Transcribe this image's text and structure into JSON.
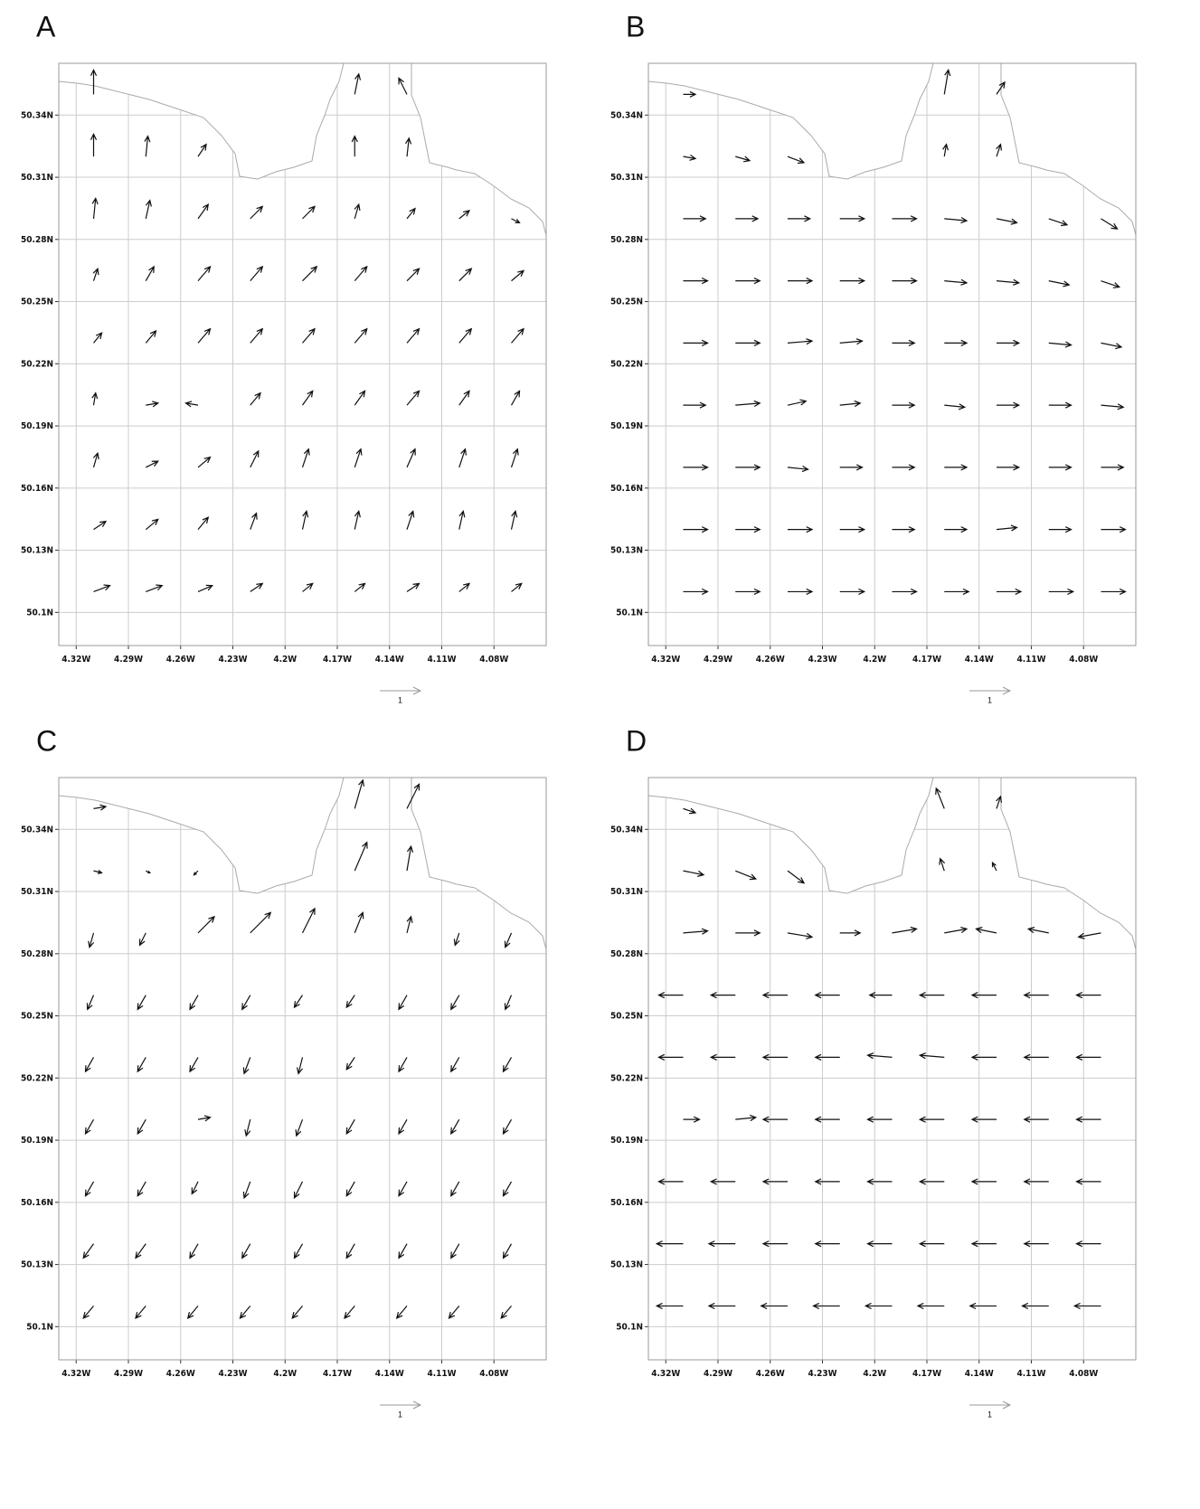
{
  "chart_data": [
    {
      "type": "quiver",
      "title": "A",
      "x": [
        -4.31,
        -4.28,
        -4.25,
        -4.22,
        -4.19,
        -4.16,
        -4.13,
        -4.1,
        -4.07
      ],
      "y": [
        50.35,
        50.32,
        50.29,
        50.26,
        50.23,
        50.2,
        50.17,
        50.14,
        50.11
      ],
      "u": [
        [
          0.0,
          null,
          null,
          null,
          null,
          0.1,
          -0.2,
          null,
          null
        ],
        [
          0.0,
          0.05,
          0.2,
          null,
          null,
          0.0,
          0.05,
          null,
          null
        ],
        [
          0.05,
          0.1,
          0.25,
          0.3,
          0.3,
          0.1,
          0.2,
          0.25,
          0.2
        ],
        [
          0.1,
          0.2,
          0.3,
          0.3,
          0.35,
          0.3,
          0.3,
          0.3,
          0.3
        ],
        [
          0.2,
          0.25,
          0.3,
          0.3,
          0.3,
          0.3,
          0.3,
          0.3,
          0.3
        ],
        [
          0.05,
          0.3,
          -0.3,
          0.25,
          0.25,
          0.25,
          0.3,
          0.25,
          0.2
        ],
        [
          0.1,
          0.3,
          0.3,
          0.2,
          0.15,
          0.15,
          0.2,
          0.15,
          0.15
        ],
        [
          0.3,
          0.3,
          0.25,
          0.15,
          0.1,
          0.1,
          0.15,
          0.1,
          0.1
        ],
        [
          0.4,
          0.4,
          0.35,
          0.3,
          0.25,
          0.25,
          0.3,
          0.25,
          0.25
        ]
      ],
      "v": [
        [
          0.6,
          null,
          null,
          null,
          null,
          0.5,
          0.4,
          null,
          null
        ],
        [
          0.55,
          0.5,
          0.3,
          null,
          null,
          0.5,
          0.45,
          null,
          null
        ],
        [
          0.5,
          0.45,
          0.35,
          0.3,
          0.3,
          0.35,
          0.25,
          0.2,
          -0.1
        ],
        [
          0.3,
          0.35,
          0.35,
          0.35,
          0.35,
          0.35,
          0.3,
          0.3,
          0.25
        ],
        [
          0.25,
          0.3,
          0.35,
          0.35,
          0.35,
          0.35,
          0.35,
          0.35,
          0.35
        ],
        [
          0.3,
          0.05,
          0.05,
          0.3,
          0.35,
          0.35,
          0.35,
          0.35,
          0.35
        ],
        [
          0.35,
          0.15,
          0.25,
          0.4,
          0.45,
          0.45,
          0.45,
          0.45,
          0.45
        ],
        [
          0.2,
          0.25,
          0.3,
          0.4,
          0.45,
          0.45,
          0.45,
          0.45,
          0.45
        ],
        [
          0.15,
          0.15,
          0.15,
          0.2,
          0.2,
          0.2,
          0.2,
          0.2,
          0.2
        ]
      ],
      "xlim": [
        -4.33,
        -4.05
      ],
      "ylim": [
        50.084,
        50.365
      ],
      "xticks": [
        {
          "value": -4.32,
          "label": "4.32W"
        },
        {
          "value": -4.29,
          "label": "4.29W"
        },
        {
          "value": -4.26,
          "label": "4.26W"
        },
        {
          "value": -4.23,
          "label": "4.23W"
        },
        {
          "value": -4.2,
          "label": "4.2W"
        },
        {
          "value": -4.17,
          "label": "4.17W"
        },
        {
          "value": -4.14,
          "label": "4.14W"
        },
        {
          "value": -4.11,
          "label": "4.11W"
        },
        {
          "value": -4.08,
          "label": "4.08W"
        }
      ],
      "yticks": [
        {
          "value": 50.1,
          "label": "50.1N"
        },
        {
          "value": 50.13,
          "label": "50.13N"
        },
        {
          "value": 50.16,
          "label": "50.16N"
        },
        {
          "value": 50.19,
          "label": "50.19N"
        },
        {
          "value": 50.22,
          "label": "50.22N"
        },
        {
          "value": 50.25,
          "label": "50.25N"
        },
        {
          "value": 50.28,
          "label": "50.28N"
        },
        {
          "value": 50.31,
          "label": "50.31N"
        },
        {
          "value": 50.34,
          "label": "50.34N"
        }
      ],
      "reference_length": 1,
      "grid": true
    },
    {
      "type": "quiver",
      "title": "B",
      "x": [
        -4.31,
        -4.28,
        -4.25,
        -4.22,
        -4.19,
        -4.16,
        -4.13,
        -4.1,
        -4.07
      ],
      "y": [
        50.35,
        50.32,
        50.29,
        50.26,
        50.23,
        50.2,
        50.17,
        50.14,
        50.11
      ],
      "u": [
        [
          0.3,
          null,
          null,
          null,
          null,
          0.1,
          0.2,
          null,
          null
        ],
        [
          0.3,
          0.35,
          0.4,
          null,
          null,
          0.05,
          0.1,
          null,
          null
        ],
        [
          0.55,
          0.55,
          0.55,
          0.6,
          0.6,
          0.55,
          0.5,
          0.45,
          0.4
        ],
        [
          0.6,
          0.6,
          0.6,
          0.6,
          0.6,
          0.55,
          0.55,
          0.5,
          0.45
        ],
        [
          0.6,
          0.6,
          0.6,
          0.55,
          0.55,
          0.55,
          0.55,
          0.55,
          0.5
        ],
        [
          0.55,
          0.6,
          0.45,
          0.5,
          0.55,
          0.5,
          0.55,
          0.55,
          0.55
        ],
        [
          0.6,
          0.6,
          0.5,
          0.55,
          0.55,
          0.55,
          0.55,
          0.55,
          0.55
        ],
        [
          0.6,
          0.6,
          0.6,
          0.6,
          0.55,
          0.55,
          0.5,
          0.55,
          0.6
        ],
        [
          0.6,
          0.6,
          0.6,
          0.6,
          0.6,
          0.6,
          0.6,
          0.6,
          0.6
        ]
      ],
      "v": [
        [
          0.0,
          null,
          null,
          null,
          null,
          0.6,
          0.3,
          null,
          null
        ],
        [
          -0.05,
          -0.1,
          -0.15,
          null,
          null,
          0.3,
          0.3,
          null,
          null
        ],
        [
          0,
          0,
          0,
          0,
          0,
          -0.05,
          -0.1,
          -0.15,
          -0.25
        ],
        [
          0,
          0,
          0,
          0,
          0,
          -0.05,
          -0.05,
          -0.1,
          -0.15
        ],
        [
          0,
          0,
          0.05,
          0.05,
          0,
          0,
          0,
          -0.05,
          -0.1
        ],
        [
          0,
          0.05,
          0.1,
          0.05,
          0,
          -0.05,
          0,
          0,
          -0.05
        ],
        [
          0,
          0,
          -0.05,
          0,
          0,
          0,
          0,
          0,
          0
        ],
        [
          0,
          0,
          0,
          0,
          0,
          0,
          0.05,
          0,
          0
        ],
        [
          0,
          0,
          0,
          0,
          0,
          0,
          0,
          0,
          0
        ]
      ],
      "xlim": [
        -4.33,
        -4.05
      ],
      "ylim": [
        50.084,
        50.365
      ],
      "xticks": [
        {
          "value": -4.32,
          "label": "4.32W"
        },
        {
          "value": -4.29,
          "label": "4.29W"
        },
        {
          "value": -4.26,
          "label": "4.26W"
        },
        {
          "value": -4.23,
          "label": "4.23W"
        },
        {
          "value": -4.2,
          "label": "4.2W"
        },
        {
          "value": -4.17,
          "label": "4.17W"
        },
        {
          "value": -4.14,
          "label": "4.14W"
        },
        {
          "value": -4.11,
          "label": "4.11W"
        },
        {
          "value": -4.08,
          "label": "4.08W"
        }
      ],
      "yticks": [
        {
          "value": 50.1,
          "label": "50.1N"
        },
        {
          "value": 50.13,
          "label": "50.13N"
        },
        {
          "value": 50.16,
          "label": "50.16N"
        },
        {
          "value": 50.19,
          "label": "50.19N"
        },
        {
          "value": 50.22,
          "label": "50.22N"
        },
        {
          "value": 50.25,
          "label": "50.25N"
        },
        {
          "value": 50.28,
          "label": "50.28N"
        },
        {
          "value": 50.31,
          "label": "50.31N"
        },
        {
          "value": 50.34,
          "label": "50.34N"
        }
      ],
      "reference_length": 1,
      "grid": true
    },
    {
      "type": "quiver",
      "title": "C",
      "x": [
        -4.31,
        -4.28,
        -4.25,
        -4.22,
        -4.19,
        -4.16,
        -4.13,
        -4.1,
        -4.07
      ],
      "y": [
        50.35,
        50.32,
        50.29,
        50.26,
        50.23,
        50.2,
        50.17,
        50.14,
        50.11
      ],
      "u": [
        [
          0.3,
          null,
          null,
          null,
          null,
          0.2,
          0.3,
          null,
          null
        ],
        [
          0.2,
          0.1,
          -0.1,
          null,
          null,
          0.3,
          0.1,
          null,
          null
        ],
        [
          -0.1,
          -0.15,
          0.4,
          0.5,
          0.3,
          0.2,
          0.1,
          -0.1,
          -0.15
        ],
        [
          -0.15,
          -0.2,
          -0.2,
          -0.2,
          -0.2,
          -0.2,
          -0.2,
          -0.2,
          -0.15
        ],
        [
          -0.2,
          -0.2,
          -0.2,
          -0.15,
          -0.1,
          -0.2,
          -0.2,
          -0.2,
          -0.2
        ],
        [
          -0.2,
          -0.2,
          0.3,
          -0.1,
          -0.15,
          -0.2,
          -0.2,
          -0.2,
          -0.2
        ],
        [
          -0.2,
          -0.2,
          -0.15,
          -0.15,
          -0.2,
          -0.2,
          -0.2,
          -0.2,
          -0.2
        ],
        [
          -0.25,
          -0.25,
          -0.2,
          -0.2,
          -0.2,
          -0.2,
          -0.2,
          -0.2,
          -0.2
        ],
        [
          -0.25,
          -0.25,
          -0.25,
          -0.25,
          -0.25,
          -0.25,
          -0.25,
          -0.25,
          -0.25
        ]
      ],
      "v": [
        [
          0.05,
          null,
          null,
          null,
          null,
          0.7,
          0.6,
          null,
          null
        ],
        [
          -0.05,
          -0.05,
          -0.1,
          null,
          null,
          0.7,
          0.6,
          null,
          null
        ],
        [
          -0.35,
          -0.3,
          0.4,
          0.5,
          0.6,
          0.5,
          0.4,
          -0.3,
          -0.35
        ],
        [
          -0.35,
          -0.35,
          -0.35,
          -0.35,
          -0.3,
          -0.3,
          -0.35,
          -0.35,
          -0.35
        ],
        [
          -0.35,
          -0.35,
          -0.35,
          -0.4,
          -0.4,
          -0.3,
          -0.35,
          -0.35,
          -0.35
        ],
        [
          -0.35,
          -0.35,
          0.05,
          -0.4,
          -0.4,
          -0.35,
          -0.35,
          -0.35,
          -0.35
        ],
        [
          -0.35,
          -0.35,
          -0.3,
          -0.4,
          -0.4,
          -0.35,
          -0.35,
          -0.35,
          -0.35
        ],
        [
          -0.35,
          -0.35,
          -0.35,
          -0.35,
          -0.35,
          -0.35,
          -0.35,
          -0.35,
          -0.35
        ],
        [
          -0.3,
          -0.3,
          -0.3,
          -0.3,
          -0.3,
          -0.3,
          -0.3,
          -0.3,
          -0.3
        ]
      ],
      "xlim": [
        -4.33,
        -4.05
      ],
      "ylim": [
        50.084,
        50.365
      ],
      "xticks": [
        {
          "value": -4.32,
          "label": "4.32W"
        },
        {
          "value": -4.29,
          "label": "4.29W"
        },
        {
          "value": -4.26,
          "label": "4.26W"
        },
        {
          "value": -4.23,
          "label": "4.23W"
        },
        {
          "value": -4.2,
          "label": "4.2W"
        },
        {
          "value": -4.17,
          "label": "4.17W"
        },
        {
          "value": -4.14,
          "label": "4.14W"
        },
        {
          "value": -4.11,
          "label": "4.11W"
        },
        {
          "value": -4.08,
          "label": "4.08W"
        }
      ],
      "yticks": [
        {
          "value": 50.1,
          "label": "50.1N"
        },
        {
          "value": 50.13,
          "label": "50.13N"
        },
        {
          "value": 50.16,
          "label": "50.16N"
        },
        {
          "value": 50.19,
          "label": "50.19N"
        },
        {
          "value": 50.22,
          "label": "50.22N"
        },
        {
          "value": 50.25,
          "label": "50.25N"
        },
        {
          "value": 50.28,
          "label": "50.28N"
        },
        {
          "value": 50.31,
          "label": "50.31N"
        },
        {
          "value": 50.34,
          "label": "50.34N"
        }
      ],
      "reference_length": 1,
      "grid": true
    },
    {
      "type": "quiver",
      "title": "D",
      "x": [
        -4.31,
        -4.28,
        -4.25,
        -4.22,
        -4.19,
        -4.16,
        -4.13,
        -4.1,
        -4.07
      ],
      "y": [
        50.35,
        50.32,
        50.29,
        50.26,
        50.23,
        50.2,
        50.17,
        50.14,
        50.11
      ],
      "u": [
        [
          0.3,
          null,
          null,
          null,
          null,
          -0.2,
          0.1,
          null,
          null
        ],
        [
          0.5,
          0.5,
          0.4,
          null,
          null,
          -0.1,
          -0.1,
          null,
          null
        ],
        [
          0.6,
          0.6,
          0.6,
          0.5,
          0.6,
          0.55,
          -0.5,
          -0.5,
          -0.55
        ],
        [
          -0.6,
          -0.6,
          -0.6,
          -0.6,
          -0.55,
          -0.6,
          -0.6,
          -0.6,
          -0.6
        ],
        [
          -0.6,
          -0.6,
          -0.6,
          -0.6,
          -0.6,
          -0.6,
          -0.6,
          -0.6,
          -0.6
        ],
        [
          0.4,
          0.5,
          -0.6,
          -0.6,
          -0.6,
          -0.6,
          -0.6,
          -0.6,
          -0.6
        ],
        [
          -0.6,
          -0.6,
          -0.6,
          -0.6,
          -0.6,
          -0.6,
          -0.6,
          -0.6,
          -0.6
        ],
        [
          -0.65,
          -0.65,
          -0.6,
          -0.6,
          -0.6,
          -0.6,
          -0.6,
          -0.6,
          -0.6
        ],
        [
          -0.65,
          -0.65,
          -0.65,
          -0.65,
          -0.65,
          -0.65,
          -0.65,
          -0.65,
          -0.65
        ]
      ],
      "v": [
        [
          -0.1,
          null,
          null,
          null,
          null,
          0.5,
          0.3,
          null,
          null
        ],
        [
          -0.1,
          -0.2,
          -0.3,
          null,
          null,
          0.3,
          0.2,
          null,
          null
        ],
        [
          0.05,
          0,
          -0.1,
          0,
          0.1,
          0.1,
          0.1,
          0.1,
          -0.1
        ],
        [
          0,
          0,
          0,
          0,
          0,
          0,
          0,
          0,
          0
        ],
        [
          0,
          0,
          0,
          0,
          0.05,
          0.05,
          0,
          0,
          0
        ],
        [
          0,
          0.05,
          0,
          0,
          0,
          0,
          0,
          0,
          0
        ],
        [
          0,
          0,
          0,
          0,
          0,
          0,
          0,
          0,
          0
        ],
        [
          0,
          0,
          0,
          0,
          0,
          0,
          0,
          0,
          0
        ],
        [
          0,
          0,
          0,
          0,
          0,
          0,
          0,
          0,
          0
        ]
      ],
      "xlim": [
        -4.33,
        -4.05
      ],
      "ylim": [
        50.084,
        50.365
      ],
      "xticks": [
        {
          "value": -4.32,
          "label": "4.32W"
        },
        {
          "value": -4.29,
          "label": "4.29W"
        },
        {
          "value": -4.26,
          "label": "4.26W"
        },
        {
          "value": -4.23,
          "label": "4.23W"
        },
        {
          "value": -4.2,
          "label": "4.2W"
        },
        {
          "value": -4.17,
          "label": "4.17W"
        },
        {
          "value": -4.14,
          "label": "4.14W"
        },
        {
          "value": -4.11,
          "label": "4.11W"
        },
        {
          "value": -4.08,
          "label": "4.08W"
        }
      ],
      "yticks": [
        {
          "value": 50.1,
          "label": "50.1N"
        },
        {
          "value": 50.13,
          "label": "50.13N"
        },
        {
          "value": 50.16,
          "label": "50.16N"
        },
        {
          "value": 50.19,
          "label": "50.19N"
        },
        {
          "value": 50.22,
          "label": "50.22N"
        },
        {
          "value": 50.25,
          "label": "50.25N"
        },
        {
          "value": 50.28,
          "label": "50.28N"
        },
        {
          "value": 50.31,
          "label": "50.31N"
        },
        {
          "value": 50.34,
          "label": "50.34N"
        }
      ],
      "reference_length": 1,
      "grid": true
    }
  ]
}
